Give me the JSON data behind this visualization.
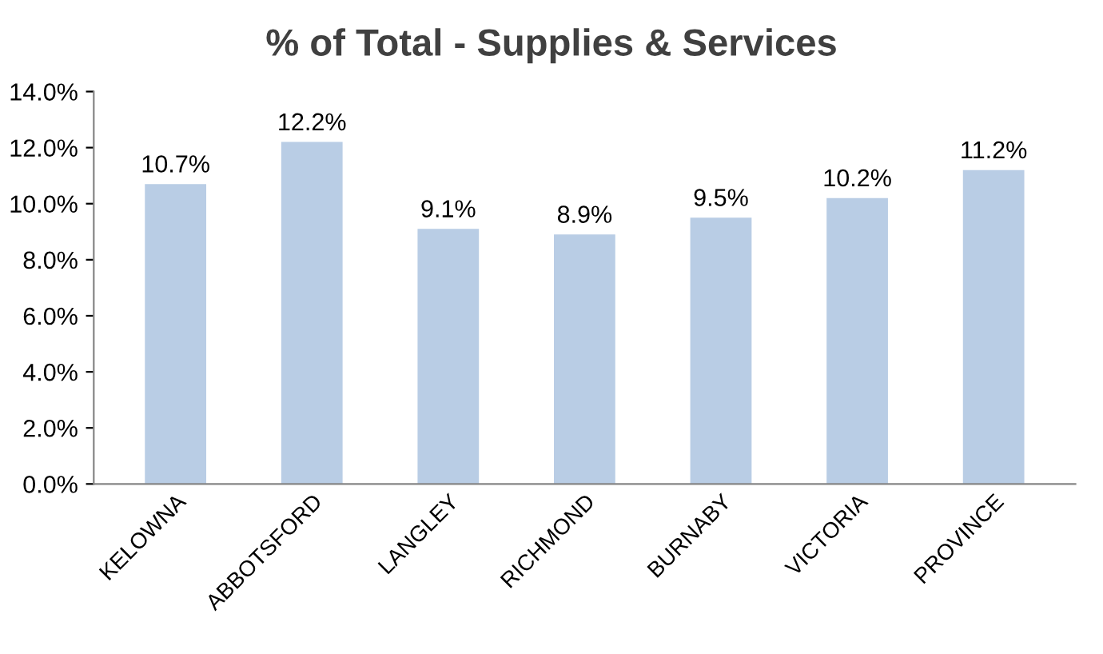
{
  "chart_data": {
    "type": "bar",
    "title": "% of Total - Supplies & Services",
    "categories": [
      "KELOWNA",
      "ABBOTSFORD",
      "LANGLEY",
      "RICHMOND",
      "BURNABY",
      "VICTORIA",
      "PROVINCE"
    ],
    "values": [
      10.7,
      12.2,
      9.1,
      8.9,
      9.5,
      10.2,
      11.2
    ],
    "value_labels": [
      "10.7%",
      "12.2%",
      "9.1%",
      "8.9%",
      "9.5%",
      "10.2%",
      "11.2%"
    ],
    "color": "#b9cde5",
    "ylim": [
      0,
      14
    ],
    "yticks": [
      {
        "value": 0,
        "label": "0.0%"
      },
      {
        "value": 2,
        "label": "2.0%"
      },
      {
        "value": 4,
        "label": "4.0%"
      },
      {
        "value": 6,
        "label": "6.0%"
      },
      {
        "value": 8,
        "label": "8.0%"
      },
      {
        "value": 10,
        "label": "10.0%"
      },
      {
        "value": 12,
        "label": "12.0%"
      },
      {
        "value": 14,
        "label": "14.0%"
      }
    ],
    "grid": false,
    "legend": false
  }
}
